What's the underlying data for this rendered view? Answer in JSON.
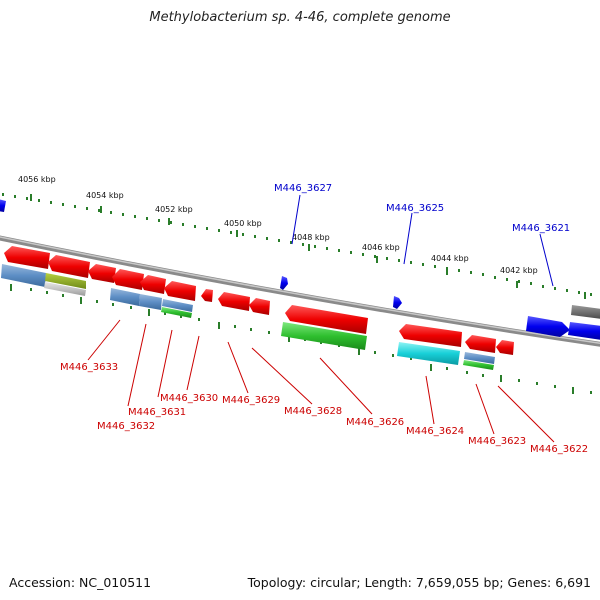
{
  "title": "Methylobacterium sp. 4-46, complete genome",
  "footer": {
    "accession": "Accession: NC_010511",
    "summary": "Topology: circular; Length: 7,659,055 bp; Genes: 6,691"
  },
  "colors": {
    "forward_label": "#0000cc",
    "reverse_label": "#cc0000",
    "tick": "#2a7d2a",
    "backbone": "#8a8a8a"
  },
  "scale_labels": [
    "4056 kbp",
    "4054 kbp",
    "4052 kbp",
    "4050 kbp",
    "4048 kbp",
    "4046 kbp",
    "4044 kbp",
    "4042 kbp"
  ],
  "forward_genes": [
    "M446_3627",
    "M446_3625",
    "M446_3621"
  ],
  "reverse_genes": [
    "M446_3633",
    "M446_3632",
    "M446_3631",
    "M446_3630",
    "M446_3629",
    "M446_3628",
    "M446_3626",
    "M446_3624",
    "M446_3623",
    "M446_3622"
  ]
}
